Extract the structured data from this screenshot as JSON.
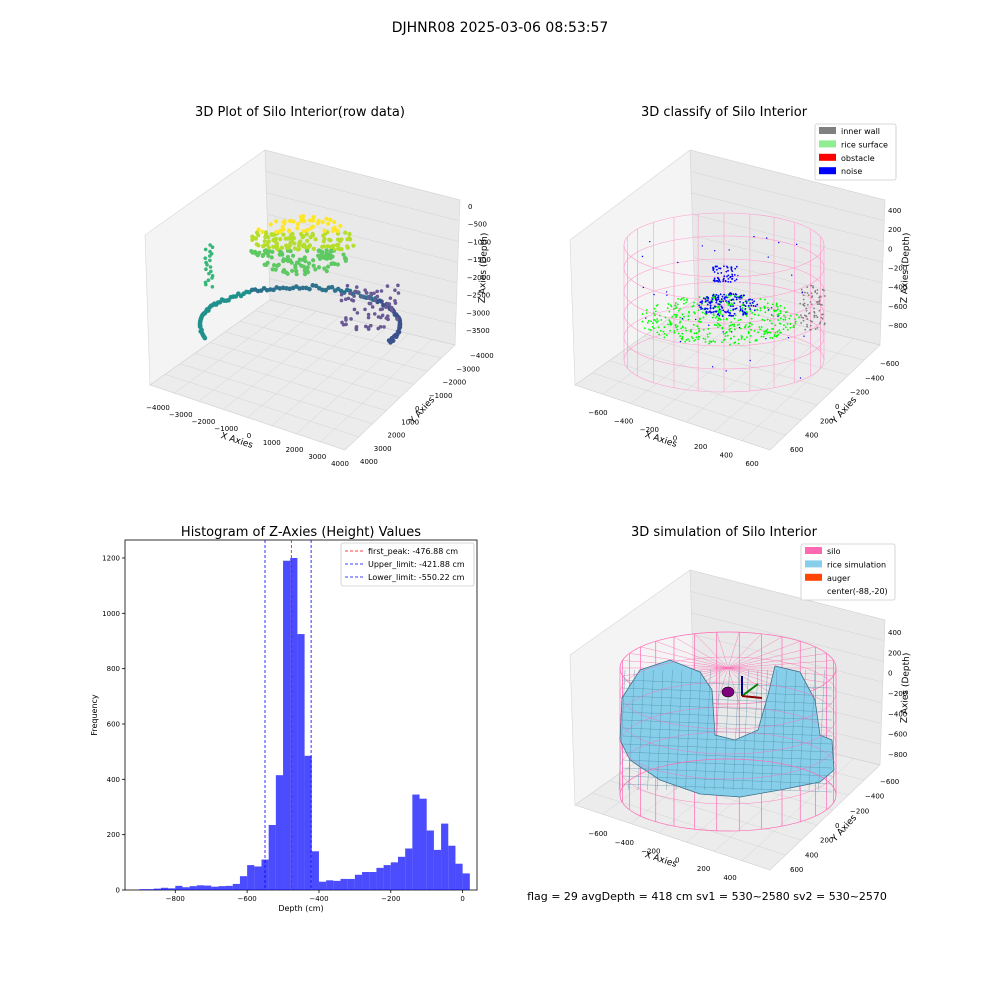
{
  "figure_title": "DJHNR08 2025-03-06 08:53:57",
  "status_text": "flag = 29  avgDepth = 418 cm  sv1 = 530~2580  sv2 = 530~2570",
  "chart_data": [
    {
      "type": "scatter",
      "subtype": "3d",
      "title": "3D Plot of Silo Interior(row data)",
      "xlabel": "X Axies",
      "ylabel": "Y Axies",
      "zlabel": "Z Axies (Depth)",
      "x_ticks": [
        "−4000",
        "−3000",
        "−2000",
        "−1000",
        "0",
        "1000",
        "2000",
        "3000",
        "4000"
      ],
      "y_ticks": [
        "−4000",
        "−3000",
        "−2000",
        "−1000",
        "0",
        "1000",
        "2000",
        "3000",
        "4000"
      ],
      "z_ticks": [
        "0",
        "−500",
        "−1000",
        "−1500",
        "−2000",
        "−2500",
        "−3000",
        "−3500"
      ],
      "xlim": [
        -4200,
        4200
      ],
      "ylim": [
        -4200,
        4200
      ],
      "zlim": [
        -3800,
        200
      ],
      "colormap": "viridis"
    },
    {
      "type": "scatter",
      "subtype": "3d",
      "title": "3D classify of Silo Interior",
      "xlabel": "X Axies",
      "ylabel": "Y Axies",
      "zlabel": "Z Axies (Depth)",
      "x_ticks": [
        "−600",
        "−400",
        "−200",
        "0",
        "200",
        "400",
        "600"
      ],
      "y_ticks": [
        "−600",
        "−400",
        "−200",
        "0",
        "200",
        "400",
        "600"
      ],
      "z_ticks": [
        "400",
        "200",
        "0",
        "−200",
        "−400",
        "−600",
        "−800"
      ],
      "legend_position": "top-right",
      "legend": [
        {
          "label": "inner wall",
          "color": "#808080"
        },
        {
          "label": "rice surface",
          "color": "#90ee90"
        },
        {
          "label": "obstacle",
          "color": "#ff0000"
        },
        {
          "label": "noise",
          "color": "#0000ff"
        }
      ]
    },
    {
      "type": "bar",
      "subtype": "histogram",
      "title": "Histogram of Z-Axies (Height) Values",
      "xlabel": "Depth (cm)",
      "ylabel": "Frequency",
      "xlim": [
        -940,
        40
      ],
      "ylim": [
        0,
        1265
      ],
      "x_ticks": [
        -800,
        -600,
        -400,
        -200,
        0
      ],
      "y_ticks": [
        0,
        200,
        400,
        600,
        800,
        1000,
        1200
      ],
      "bar_color": "#0000ff",
      "bins": [
        {
          "x0": -900,
          "x1": -880,
          "value": 3
        },
        {
          "x0": -880,
          "x1": -860,
          "value": 3
        },
        {
          "x0": -860,
          "x1": -840,
          "value": 5
        },
        {
          "x0": -840,
          "x1": -820,
          "value": 8
        },
        {
          "x0": -820,
          "x1": -800,
          "value": 6
        },
        {
          "x0": -800,
          "x1": -780,
          "value": 15
        },
        {
          "x0": -780,
          "x1": -760,
          "value": 10
        },
        {
          "x0": -760,
          "x1": -740,
          "value": 14
        },
        {
          "x0": -740,
          "x1": -720,
          "value": 17
        },
        {
          "x0": -720,
          "x1": -700,
          "value": 16
        },
        {
          "x0": -700,
          "x1": -680,
          "value": 12
        },
        {
          "x0": -680,
          "x1": -660,
          "value": 14
        },
        {
          "x0": -660,
          "x1": -640,
          "value": 15
        },
        {
          "x0": -640,
          "x1": -620,
          "value": 22
        },
        {
          "x0": -620,
          "x1": -600,
          "value": 50
        },
        {
          "x0": -600,
          "x1": -580,
          "value": 90
        },
        {
          "x0": -580,
          "x1": -560,
          "value": 85
        },
        {
          "x0": -560,
          "x1": -540,
          "value": 110
        },
        {
          "x0": -540,
          "x1": -520,
          "value": 235
        },
        {
          "x0": -520,
          "x1": -500,
          "value": 415
        },
        {
          "x0": -500,
          "x1": -480,
          "value": 1190
        },
        {
          "x0": -480,
          "x1": -460,
          "value": 1200
        },
        {
          "x0": -460,
          "x1": -440,
          "value": 925
        },
        {
          "x0": -440,
          "x1": -420,
          "value": 485
        },
        {
          "x0": -420,
          "x1": -400,
          "value": 140
        },
        {
          "x0": -400,
          "x1": -380,
          "value": 30
        },
        {
          "x0": -380,
          "x1": -360,
          "value": 35
        },
        {
          "x0": -360,
          "x1": -340,
          "value": 33
        },
        {
          "x0": -340,
          "x1": -320,
          "value": 40
        },
        {
          "x0": -320,
          "x1": -300,
          "value": 40
        },
        {
          "x0": -300,
          "x1": -280,
          "value": 55
        },
        {
          "x0": -280,
          "x1": -260,
          "value": 65
        },
        {
          "x0": -260,
          "x1": -240,
          "value": 65
        },
        {
          "x0": -240,
          "x1": -220,
          "value": 80
        },
        {
          "x0": -220,
          "x1": -200,
          "value": 90
        },
        {
          "x0": -200,
          "x1": -180,
          "value": 100
        },
        {
          "x0": -180,
          "x1": -160,
          "value": 120
        },
        {
          "x0": -160,
          "x1": -140,
          "value": 150
        },
        {
          "x0": -140,
          "x1": -120,
          "value": 345
        },
        {
          "x0": -120,
          "x1": -100,
          "value": 330
        },
        {
          "x0": -100,
          "x1": -80,
          "value": 215
        },
        {
          "x0": -80,
          "x1": -60,
          "value": 145
        },
        {
          "x0": -60,
          "x1": -40,
          "value": 240
        },
        {
          "x0": -40,
          "x1": -20,
          "value": 160
        },
        {
          "x0": -20,
          "x1": 0,
          "value": 95
        },
        {
          "x0": 0,
          "x1": 20,
          "value": 60
        }
      ],
      "vlines": [
        {
          "x": -476.88,
          "color": "#ff0000",
          "label": "first_peak: -476.88 cm"
        },
        {
          "x": -421.88,
          "color": "#0000ff",
          "label": "Upper_limit: -421.88 cm"
        },
        {
          "x": -550.22,
          "color": "#0000ff",
          "label": "Lower_limit: -550.22 cm"
        }
      ],
      "legend_position": "top-right"
    },
    {
      "type": "surface",
      "subtype": "3d",
      "title": "3D simulation of Silo Interior",
      "xlabel": "X Axies",
      "ylabel": "Y Axies",
      "zlabel": "Z Axies (Depth)",
      "x_ticks": [
        "−600",
        "−400",
        "−200",
        "0",
        "200",
        "400"
      ],
      "y_ticks": [
        "−600",
        "−400",
        "−200",
        "0",
        "200",
        "400",
        "600"
      ],
      "z_ticks": [
        "400",
        "200",
        "0",
        "−200",
        "−400",
        "−600",
        "−800"
      ],
      "legend_position": "top-right",
      "legend": [
        {
          "label": "silo",
          "color": "#ff69b4"
        },
        {
          "label": "rice simulation",
          "color": "#87ceeb"
        },
        {
          "label": "auger",
          "color": "#ff4500"
        },
        {
          "label": "center(-88,-20)",
          "color": ""
        }
      ]
    }
  ]
}
